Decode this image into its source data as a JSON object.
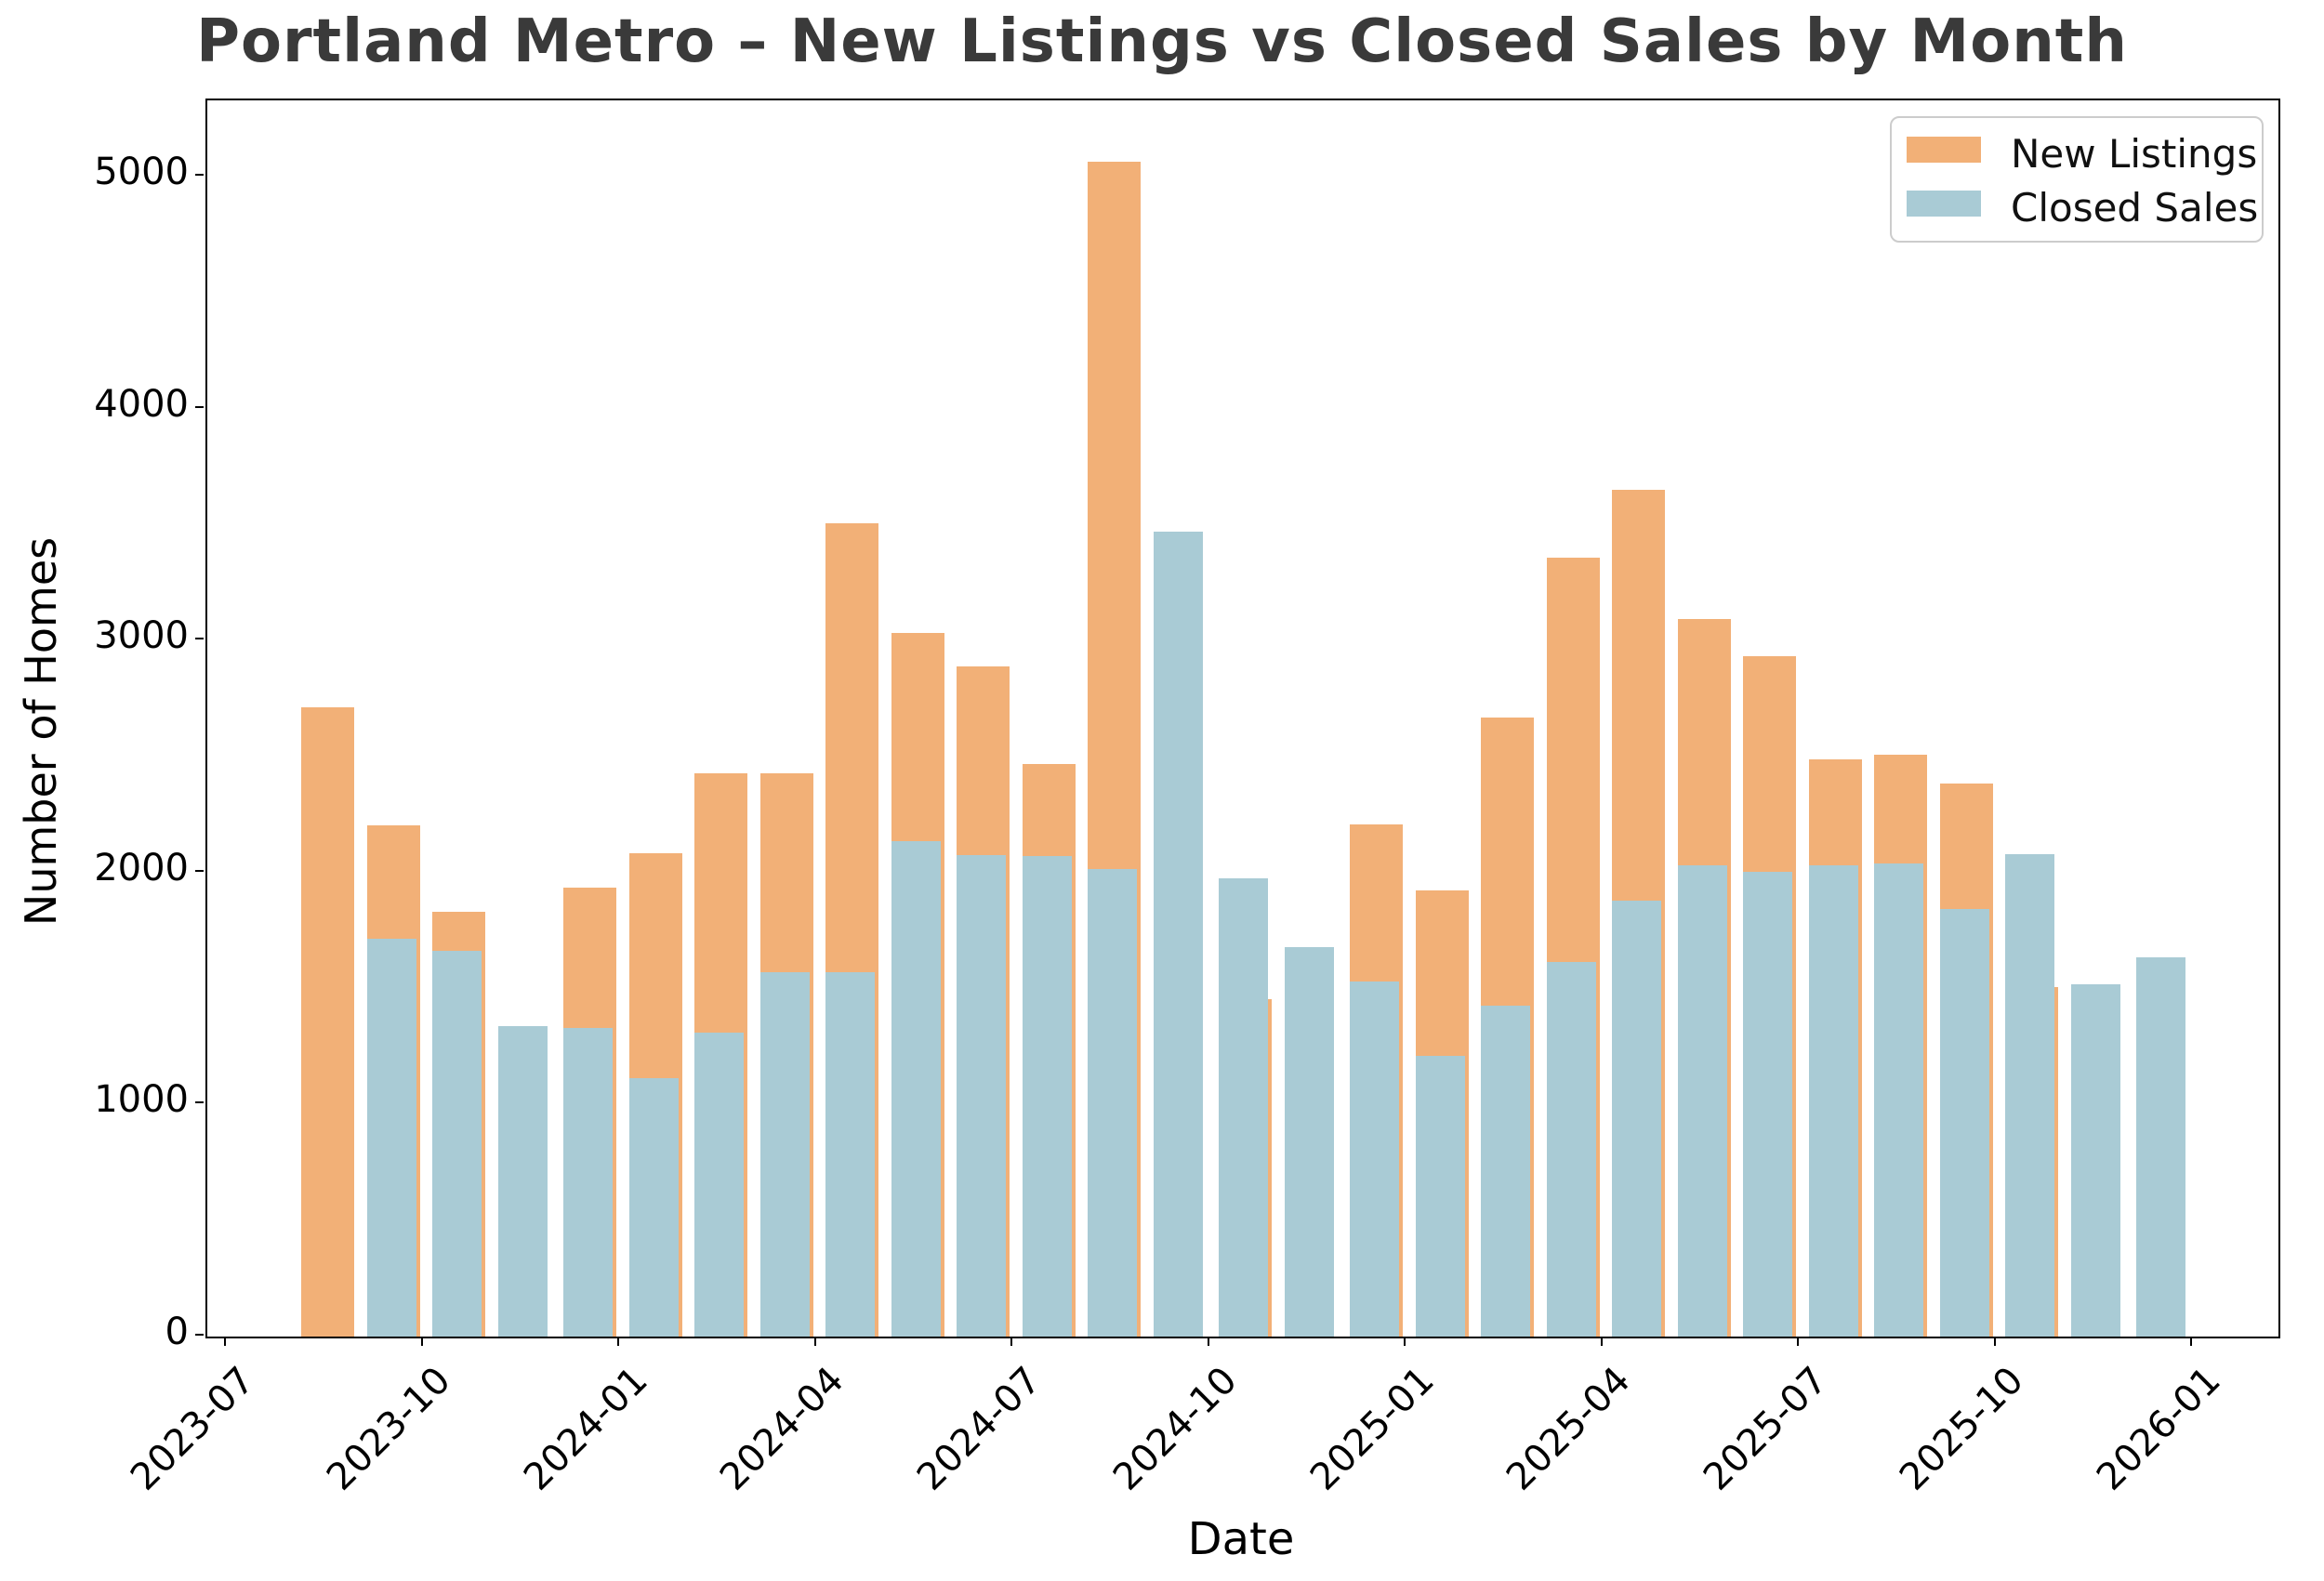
{
  "title": "Portland Metro – New Listings vs Closed Sales by Month",
  "xlabel": "Date",
  "ylabel": "Number of Homes",
  "legend": {
    "items": [
      {
        "label": "New Listings",
        "color": "#f2b077"
      },
      {
        "label": "Closed Sales",
        "color": "#a9cbd5"
      }
    ]
  },
  "colors": {
    "new_listings": "#f2b077",
    "closed_sales": "#a9cbd5",
    "title_text": "#3a3a3a",
    "axis": "#000000",
    "legend_border": "#cccccc"
  },
  "chart_data": {
    "type": "bar",
    "title": "Portland Metro – New Listings vs Closed Sales by Month",
    "xlabel": "Date",
    "ylabel": "Number of Homes",
    "legend_position": "upper right",
    "grid": false,
    "ylim": [
      0,
      5330
    ],
    "yticks": [
      0,
      1000,
      2000,
      3000,
      4000,
      5000
    ],
    "xticks": [
      "2023-07",
      "2023-10",
      "2024-01",
      "2024-04",
      "2024-07",
      "2024-10",
      "2025-01",
      "2025-04",
      "2025-07",
      "2025-10",
      "2026-01"
    ],
    "categories": [
      "2023-08",
      "2023-09",
      "2023-10",
      "2023-11",
      "2023-12",
      "2024-01",
      "2024-02",
      "2024-03",
      "2024-04",
      "2024-05",
      "2024-06",
      "2024-07",
      "2024-08",
      "2024-09",
      "2024-10",
      "2024-11",
      "2024-12",
      "2025-01",
      "2025-02",
      "2025-03",
      "2025-04",
      "2025-05",
      "2025-06",
      "2025-07",
      "2025-08",
      "2025-09",
      "2025-10",
      "2025-11",
      "2025-12"
    ],
    "series": [
      {
        "name": "New Listings",
        "color": "#f2b077",
        "values": [
          2715,
          2205,
          1830,
          null,
          1935,
          2085,
          2430,
          2430,
          3505,
          3035,
          2890,
          2470,
          5065,
          null,
          1455,
          null,
          2210,
          1925,
          2670,
          3360,
          3650,
          3095,
          2935,
          2490,
          2510,
          2385,
          1505,
          null,
          null
        ]
      },
      {
        "name": "Closed Sales",
        "color": "#a9cbd5",
        "values": [
          null,
          1715,
          1665,
          1340,
          1330,
          1115,
          1310,
          1570,
          1570,
          2135,
          2075,
          2070,
          2015,
          3470,
          1975,
          1680,
          1530,
          1210,
          1425,
          1615,
          1880,
          2030,
          2005,
          2030,
          2040,
          1845,
          2080,
          1520,
          1635
        ]
      }
    ]
  }
}
